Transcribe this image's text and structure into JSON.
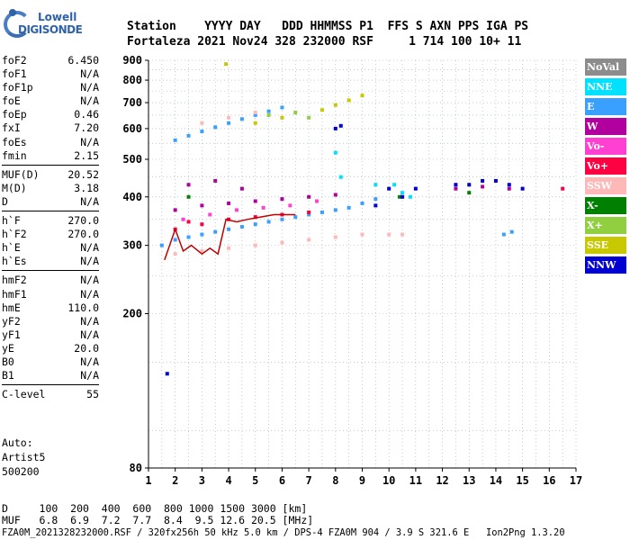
{
  "logo": {
    "top": "Lowell",
    "bottom": "DIGISONDE"
  },
  "header": {
    "line1": "Station    YYYY DAY   DDD HHMMSS P1  FFS S AXN PPS IGA PS",
    "line2": "Fortaleza 2021 Nov24 328 232000 RSF     1 714 100 10+ 11"
  },
  "params": [
    [
      [
        "foF2",
        "6.450"
      ],
      [
        "foF1",
        "N/A"
      ],
      [
        "foF1p",
        "N/A"
      ],
      [
        "foE",
        "N/A"
      ],
      [
        "foEp",
        "0.46"
      ],
      [
        "fxI",
        "7.20"
      ],
      [
        "foEs",
        "N/A"
      ],
      [
        "fmin",
        "2.15"
      ]
    ],
    [
      [
        "MUF(D)",
        "20.52"
      ],
      [
        "M(D)",
        "3.18"
      ],
      [
        "D",
        "N/A"
      ]
    ],
    [
      [
        "h`F",
        "270.0"
      ],
      [
        "h`F2",
        "270.0"
      ],
      [
        "h`E",
        "N/A"
      ],
      [
        "h`Es",
        "N/A"
      ]
    ],
    [
      [
        "hmF2",
        "N/A"
      ],
      [
        "hmF1",
        "N/A"
      ],
      [
        "hmE",
        "110.0"
      ],
      [
        "yF2",
        "N/A"
      ],
      [
        "yF1",
        "N/A"
      ],
      [
        "yE",
        "20.0"
      ],
      [
        "B0",
        "N/A"
      ],
      [
        "B1",
        "N/A"
      ]
    ],
    [
      [
        "C-level",
        "55"
      ]
    ]
  ],
  "auto": {
    "line1": "Auto:",
    "line2": "Artist5",
    "line3": "500200"
  },
  "legend": [
    {
      "label": "NoVal",
      "color": "#8c8c8c"
    },
    {
      "label": "NNE",
      "color": "#00e0ff"
    },
    {
      "label": "E",
      "color": "#3aa0ff"
    },
    {
      "label": "W",
      "color": "#b0009e"
    },
    {
      "label": "Vo-",
      "color": "#ff40d0"
    },
    {
      "label": "Vo+",
      "color": "#ff0040"
    },
    {
      "label": "SSW",
      "color": "#ffb8b8"
    },
    {
      "label": "X-",
      "color": "#008000"
    },
    {
      "label": "X+",
      "color": "#90d040"
    },
    {
      "label": "SSE",
      "color": "#c8c800"
    },
    {
      "label": "NNW",
      "color": "#0000d0"
    }
  ],
  "footer": {
    "line1": "D     100  200  400  600  800 1000 1500 3000 [km]",
    "line2": "MUF   6.8  6.9  7.2  7.7  8.4  9.5 12.6 20.5 [MHz]"
  },
  "status": "FZA0M_2021328232000.RSF / 320fx256h 50 kHz 5.0 km / DPS-4 FZA0M 904 / 3.9 S 321.6 E   Ion2Png 1.3.20",
  "chart_data": {
    "type": "scatter",
    "title": "",
    "xlabel": "",
    "ylabel": "",
    "xlim": [
      1,
      17
    ],
    "ylim": [
      80,
      900
    ],
    "x_ticks": [
      1,
      2,
      3,
      4,
      5,
      6,
      7,
      8,
      9,
      10,
      11,
      12,
      13,
      14,
      15,
      16,
      17
    ],
    "y_ticks": [
      80,
      200,
      300,
      400,
      500,
      600,
      700,
      800,
      900
    ],
    "y_scale": "log",
    "grid": true,
    "legend_position": "right",
    "series": [
      {
        "name": "E",
        "color": "#3aa0ff",
        "points": [
          [
            1.5,
            300
          ],
          [
            2.0,
            310
          ],
          [
            2.5,
            315
          ],
          [
            3.0,
            320
          ],
          [
            3.5,
            325
          ],
          [
            4.0,
            330
          ],
          [
            4.5,
            335
          ],
          [
            5.0,
            340
          ],
          [
            5.5,
            345
          ],
          [
            6.0,
            350
          ],
          [
            6.5,
            355
          ],
          [
            7.0,
            360
          ],
          [
            7.5,
            365
          ],
          [
            8.0,
            370
          ],
          [
            8.5,
            375
          ],
          [
            9.0,
            385
          ],
          [
            9.5,
            395
          ],
          [
            2.0,
            560
          ],
          [
            2.5,
            575
          ],
          [
            3.0,
            590
          ],
          [
            3.5,
            605
          ],
          [
            4.0,
            620
          ],
          [
            4.5,
            635
          ],
          [
            5.0,
            650
          ],
          [
            5.5,
            665
          ],
          [
            6.0,
            680
          ],
          [
            14.3,
            320
          ],
          [
            14.6,
            325
          ]
        ]
      },
      {
        "name": "NNE",
        "color": "#00e0ff",
        "points": [
          [
            8.2,
            450
          ],
          [
            8.0,
            520
          ],
          [
            10.2,
            430
          ],
          [
            10.5,
            410
          ],
          [
            9.5,
            430
          ],
          [
            10.8,
            400
          ]
        ]
      },
      {
        "name": "W",
        "color": "#b0009e",
        "points": [
          [
            2.0,
            370
          ],
          [
            3.0,
            380
          ],
          [
            4.0,
            385
          ],
          [
            5.0,
            390
          ],
          [
            6.0,
            395
          ],
          [
            7.0,
            400
          ],
          [
            8.0,
            405
          ],
          [
            2.5,
            430
          ],
          [
            3.5,
            440
          ],
          [
            4.5,
            420
          ],
          [
            12.5,
            420
          ],
          [
            13.5,
            425
          ],
          [
            14.5,
            420
          ]
        ]
      },
      {
        "name": "Vo-",
        "color": "#ff40d0",
        "points": [
          [
            2.3,
            350
          ],
          [
            3.3,
            360
          ],
          [
            4.3,
            370
          ],
          [
            5.3,
            375
          ],
          [
            6.3,
            380
          ],
          [
            7.3,
            390
          ]
        ]
      },
      {
        "name": "Vo+",
        "color": "#ff0040",
        "points": [
          [
            2.0,
            330
          ],
          [
            2.5,
            345
          ],
          [
            3.0,
            340
          ],
          [
            4.0,
            350
          ],
          [
            5.0,
            355
          ],
          [
            6.0,
            360
          ],
          [
            7.0,
            365
          ],
          [
            16.5,
            420
          ]
        ]
      },
      {
        "name": "SSW",
        "color": "#ffb8b8",
        "points": [
          [
            2.0,
            285
          ],
          [
            3.0,
            290
          ],
          [
            4.0,
            295
          ],
          [
            5.0,
            300
          ],
          [
            6.0,
            305
          ],
          [
            7.0,
            310
          ],
          [
            8.0,
            315
          ],
          [
            9.0,
            320
          ],
          [
            10.0,
            320
          ],
          [
            10.5,
            320
          ],
          [
            3.0,
            620
          ],
          [
            4.0,
            640
          ],
          [
            5.0,
            660
          ]
        ]
      },
      {
        "name": "X-",
        "color": "#008000",
        "points": [
          [
            2.5,
            400
          ],
          [
            10.4,
            400
          ],
          [
            13.0,
            410
          ]
        ]
      },
      {
        "name": "X+",
        "color": "#90d040",
        "points": [
          [
            5.5,
            650
          ],
          [
            6.5,
            660
          ],
          [
            7.0,
            640
          ]
        ]
      },
      {
        "name": "SSE",
        "color": "#c8c800",
        "points": [
          [
            7.5,
            670
          ],
          [
            8.0,
            690
          ],
          [
            8.5,
            710
          ],
          [
            9.0,
            730
          ],
          [
            5.0,
            620
          ],
          [
            6.0,
            640
          ],
          [
            3.9,
            880
          ]
        ]
      },
      {
        "name": "NNW",
        "color": "#0000d0",
        "points": [
          [
            1.7,
            140
          ],
          [
            8.0,
            600
          ],
          [
            8.2,
            610
          ],
          [
            9.5,
            380
          ],
          [
            10.0,
            420
          ],
          [
            10.5,
            400
          ],
          [
            11.0,
            420
          ],
          [
            12.5,
            430
          ],
          [
            13.0,
            430
          ],
          [
            13.5,
            440
          ],
          [
            14.0,
            440
          ],
          [
            14.5,
            430
          ],
          [
            15.0,
            420
          ]
        ]
      }
    ],
    "trace": {
      "name": "",
      "color": "#c00000",
      "points": [
        [
          1.6,
          275
        ],
        [
          2.0,
          330
        ],
        [
          2.3,
          290
        ],
        [
          2.6,
          300
        ],
        [
          3.0,
          285
        ],
        [
          3.3,
          295
        ],
        [
          3.6,
          285
        ],
        [
          3.9,
          350
        ],
        [
          4.3,
          345
        ],
        [
          4.7,
          350
        ],
        [
          5.2,
          355
        ],
        [
          5.7,
          360
        ],
        [
          6.2,
          360
        ],
        [
          6.5,
          360
        ]
      ]
    }
  }
}
